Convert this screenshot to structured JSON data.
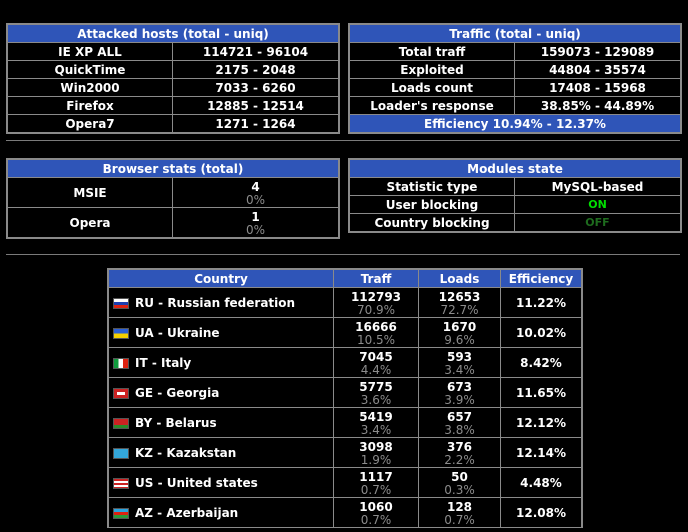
{
  "attacked": {
    "title": "Attacked hosts (total - uniq)",
    "rows": [
      {
        "name": "IE XP ALL",
        "value": "114721 - 96104"
      },
      {
        "name": "QuickTime",
        "value": "2175 - 2048"
      },
      {
        "name": "Win2000",
        "value": "7033 - 6260"
      },
      {
        "name": "Firefox",
        "value": "12885 - 12514"
      },
      {
        "name": "Opera7",
        "value": "1271 - 1264"
      }
    ]
  },
  "traffic": {
    "title": "Traffic (total - uniq)",
    "rows": [
      {
        "name": "Total traff",
        "value": "159073 - 129089"
      },
      {
        "name": "Exploited",
        "value": "44804 - 35574"
      },
      {
        "name": "Loads count",
        "value": "17408 - 15968"
      },
      {
        "name": "Loader's response",
        "value": "38.85% - 44.89%"
      }
    ],
    "efficiency": "Efficiency 10.94% - 12.37%"
  },
  "browser": {
    "title": "Browser stats (total)",
    "rows": [
      {
        "name": "MSIE",
        "count": "4",
        "pct": "0%"
      },
      {
        "name": "Opera",
        "count": "1",
        "pct": "0%"
      }
    ]
  },
  "modules": {
    "title": "Modules state",
    "rows": [
      {
        "name": "Statistic type",
        "value": "MySQL-based",
        "style": "normal"
      },
      {
        "name": "User blocking",
        "value": "ON",
        "style": "on"
      },
      {
        "name": "Country blocking",
        "value": "OFF",
        "style": "off"
      }
    ]
  },
  "countries": {
    "headers": {
      "country": "Country",
      "traff": "Traff",
      "loads": "Loads",
      "efficiency": "Efficiency"
    },
    "rows": [
      {
        "flag": "ru-flag-icon",
        "name": "RU - Russian federation",
        "traff": "112793",
        "traff_pct": "70.9%",
        "loads": "12653",
        "loads_pct": "72.7%",
        "eff": "11.22%"
      },
      {
        "flag": "ua-flag-icon",
        "name": "UA - Ukraine",
        "traff": "16666",
        "traff_pct": "10.5%",
        "loads": "1670",
        "loads_pct": "9.6%",
        "eff": "10.02%"
      },
      {
        "flag": "it-flag-icon",
        "name": "IT - Italy",
        "traff": "7045",
        "traff_pct": "4.4%",
        "loads": "593",
        "loads_pct": "3.4%",
        "eff": "8.42%"
      },
      {
        "flag": "ge-flag-icon",
        "name": "GE - Georgia",
        "traff": "5775",
        "traff_pct": "3.6%",
        "loads": "673",
        "loads_pct": "3.9%",
        "eff": "11.65%"
      },
      {
        "flag": "by-flag-icon",
        "name": "BY - Belarus",
        "traff": "5419",
        "traff_pct": "3.4%",
        "loads": "657",
        "loads_pct": "3.8%",
        "eff": "12.12%"
      },
      {
        "flag": "kz-flag-icon",
        "name": "KZ - Kazakstan",
        "traff": "3098",
        "traff_pct": "1.9%",
        "loads": "376",
        "loads_pct": "2.2%",
        "eff": "12.14%"
      },
      {
        "flag": "us-flag-icon",
        "name": "US - United states",
        "traff": "1117",
        "traff_pct": "0.7%",
        "loads": "50",
        "loads_pct": "0.3%",
        "eff": "4.48%"
      },
      {
        "flag": "az-flag-icon",
        "name": "AZ - Azerbaijan",
        "traff": "1060",
        "traff_pct": "0.7%",
        "loads": "128",
        "loads_pct": "0.7%",
        "eff": "12.08%"
      }
    ]
  },
  "colors": {
    "header_bg": "#2f55b8",
    "on": "#00dd00",
    "off": "#1e6b1e",
    "sub": "#8c8c8c"
  }
}
